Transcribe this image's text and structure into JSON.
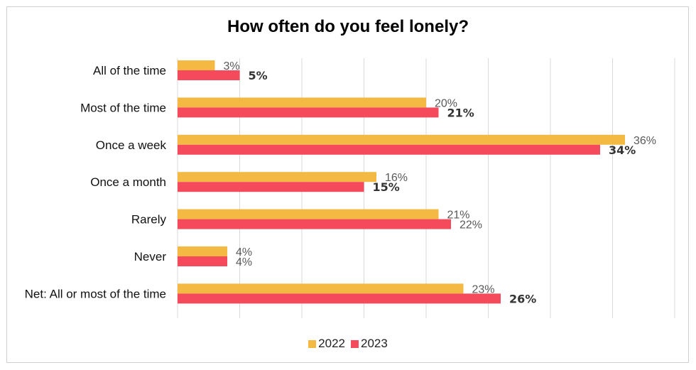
{
  "chart_data": {
    "type": "bar",
    "orientation": "horizontal",
    "title": "How often do you feel lonely?",
    "categories": [
      "All of the time",
      "Most of the time",
      "Once a week",
      "Once a month",
      "Rarely",
      "Never",
      "Net: All or most of the time"
    ],
    "series": [
      {
        "name": "2022",
        "values": [
          3,
          20,
          36,
          16,
          21,
          4,
          23
        ],
        "color": "#F4B942",
        "labels": [
          "3%",
          "20%",
          "36%",
          "16%",
          "21%",
          "4%",
          "23%"
        ]
      },
      {
        "name": "2023",
        "values": [
          5,
          21,
          34,
          15,
          22,
          4,
          26
        ],
        "color": "#F44A5C",
        "labels": [
          "5%",
          "21%",
          "34%",
          "15%",
          "22%",
          "4%",
          "26%"
        ],
        "bold_labels": [
          true,
          true,
          true,
          true,
          false,
          false,
          true
        ]
      }
    ],
    "xlim": [
      0,
      40
    ],
    "grid": true,
    "legend_position": "bottom"
  }
}
